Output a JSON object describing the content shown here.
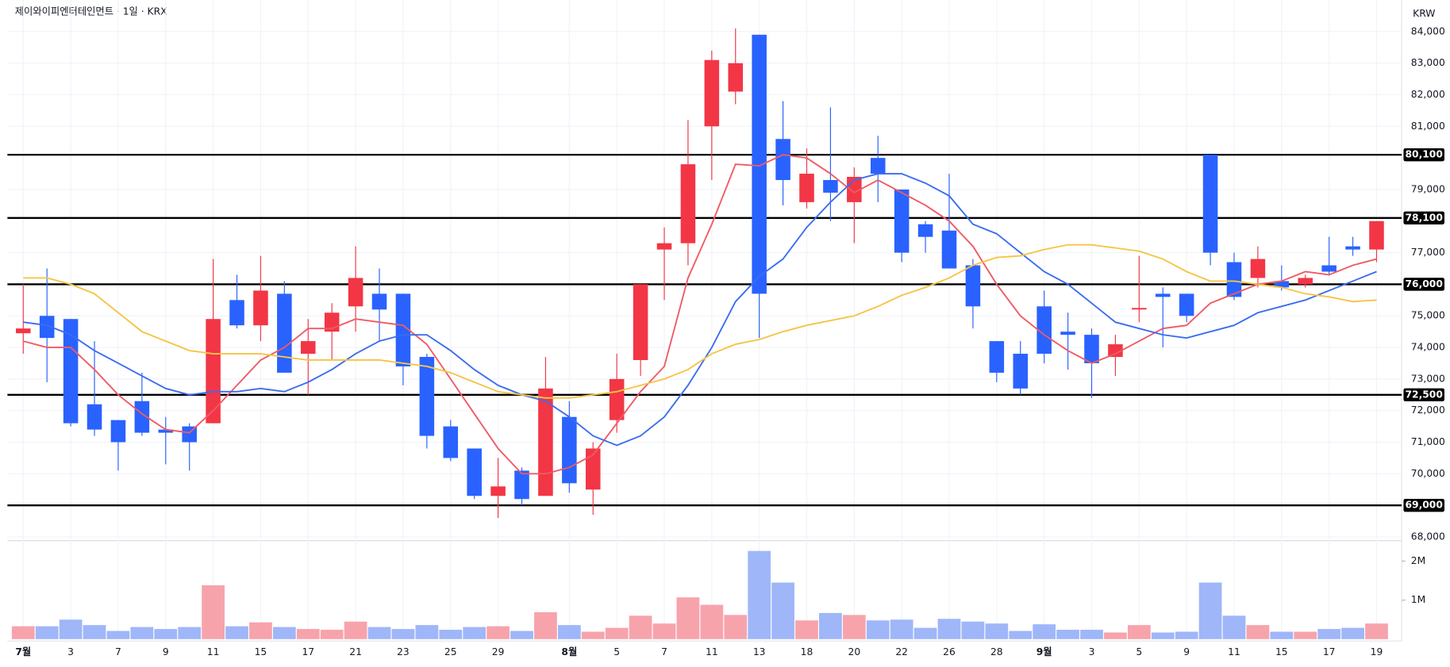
{
  "chart_data": {
    "type": "candlestick",
    "title": "제이와이피엔터테인먼트 · 1일 · KRX",
    "currency": "KRW",
    "categories": [
      "7월",
      null,
      "3",
      null,
      "7",
      null,
      "9",
      null,
      "11",
      null,
      "15",
      null,
      "17",
      null,
      "21",
      null,
      "23",
      null,
      "25",
      null,
      "29",
      null,
      null,
      "8월",
      null,
      "5",
      null,
      "7",
      null,
      "11",
      null,
      "13",
      null,
      "18",
      null,
      "20",
      null,
      "22",
      null,
      "26",
      null,
      "28",
      null,
      "9월",
      null,
      "3",
      null,
      "5",
      null,
      "9",
      null,
      "11",
      null,
      "15",
      null,
      "17",
      null,
      "19"
    ],
    "open": [
      74450,
      75000,
      74900,
      72200,
      71700,
      72300,
      71400,
      71500,
      71600,
      75500,
      74700,
      75700,
      73800,
      74500,
      75300,
      75700,
      75700,
      73700,
      71500,
      70800,
      69300,
      70100,
      69300,
      71800,
      69500,
      71700,
      73600,
      77100,
      77300,
      81000,
      82100,
      83900,
      80600,
      78600,
      79300,
      78600,
      80000,
      79000,
      77900,
      77700,
      76600,
      74200,
      73800,
      75300,
      74500,
      74400,
      73700,
      75200,
      75700,
      75700,
      80100,
      76700,
      76200,
      76100,
      76000,
      76600,
      77200,
      77100
    ],
    "high": [
      76000,
      76500,
      74900,
      74200,
      71700,
      73200,
      71800,
      71600,
      76800,
      76300,
      76900,
      76100,
      74900,
      75400,
      77200,
      76500,
      75700,
      73800,
      71700,
      70800,
      70500,
      70200,
      73700,
      72300,
      71000,
      73800,
      76000,
      77800,
      81200,
      83400,
      84100,
      83900,
      81800,
      80300,
      81600,
      79700,
      80700,
      79000,
      78000,
      79500,
      76800,
      74200,
      74200,
      75800,
      75100,
      74600,
      74400,
      76900,
      75900,
      75700,
      80100,
      77000,
      77200,
      76600,
      76300,
      77500,
      77500,
      78000
    ],
    "low": [
      73800,
      72900,
      71500,
      71200,
      70100,
      71200,
      70300,
      70100,
      71600,
      74600,
      74200,
      73200,
      72500,
      73600,
      74500,
      74200,
      72800,
      70800,
      70400,
      69200,
      68600,
      69000,
      69300,
      69400,
      68700,
      71300,
      73100,
      75500,
      76600,
      79300,
      81700,
      74300,
      78500,
      78400,
      78000,
      77300,
      78600,
      76700,
      77000,
      76500,
      74600,
      72900,
      72500,
      73500,
      73300,
      72400,
      73100,
      74800,
      74000,
      74800,
      76600,
      75500,
      75900,
      75800,
      75900,
      76300,
      76900,
      76700
    ],
    "close": [
      74600,
      74300,
      71600,
      71400,
      71000,
      71300,
      71300,
      71000,
      74900,
      74700,
      75800,
      73200,
      74200,
      75100,
      76200,
      75200,
      73400,
      71200,
      70500,
      69300,
      69600,
      69200,
      72700,
      69700,
      70800,
      73000,
      76000,
      77300,
      79800,
      83100,
      83000,
      75700,
      79300,
      79500,
      78900,
      79400,
      79500,
      77000,
      77500,
      76500,
      75300,
      73200,
      72700,
      73800,
      74400,
      73500,
      74100,
      75250,
      75600,
      75000,
      77000,
      75600,
      76800,
      75900,
      76200,
      76400,
      77100,
      78000
    ],
    "volume": [
      330000,
      330000,
      500000,
      360000,
      210000,
      310000,
      260000,
      310000,
      1380000,
      330000,
      430000,
      310000,
      260000,
      240000,
      450000,
      310000,
      260000,
      360000,
      240000,
      310000,
      330000,
      210000,
      690000,
      360000,
      190000,
      290000,
      600000,
      400000,
      1070000,
      880000,
      620000,
      2260000,
      1450000,
      480000,
      670000,
      620000,
      480000,
      500000,
      290000,
      520000,
      450000,
      400000,
      210000,
      380000,
      240000,
      240000,
      170000,
      360000,
      170000,
      190000,
      1450000,
      600000,
      360000,
      190000,
      190000,
      260000,
      290000,
      400000
    ],
    "up_color": "#f23645",
    "down_color": "#2962ff",
    "up_volume_color": "#f7a3ac",
    "down_volume_color": "#9fb6f9",
    "moving_averages": [
      {
        "color": "#ef5a64",
        "values": [
          74200,
          74000,
          74000,
          73300,
          72500,
          71900,
          71400,
          71300,
          72000,
          72800,
          73600,
          74000,
          74600,
          74600,
          74900,
          74800,
          74700,
          74100,
          73000,
          71900,
          70800,
          70000,
          70000,
          70200,
          70600,
          71600,
          72600,
          73400,
          76200,
          77900,
          79800,
          79750,
          80100,
          80000,
          79500,
          78900,
          79300,
          78900,
          78500,
          78000,
          77200,
          76000,
          75000,
          74400,
          73900,
          73500,
          73800,
          74200,
          74600,
          74700,
          75400,
          75700,
          76000,
          76100,
          76400,
          76300,
          76600,
          76800
        ]
      },
      {
        "color": "#3b6cf0",
        "values": [
          74800,
          74700,
          74400,
          73900,
          73500,
          73100,
          72700,
          72500,
          72600,
          72600,
          72700,
          72600,
          72900,
          73300,
          73800,
          74200,
          74400,
          74400,
          73900,
          73300,
          72800,
          72500,
          72300,
          71800,
          71200,
          70900,
          71200,
          71800,
          72800,
          74000,
          75450,
          76250,
          76800,
          77800,
          78600,
          79300,
          79500,
          79500,
          79200,
          78800,
          77900,
          77600,
          77000,
          76400,
          76000,
          75400,
          74800,
          74600,
          74400,
          74300,
          74500,
          74700,
          75100,
          75300,
          75500,
          75800,
          76100,
          76400
        ]
      },
      {
        "color": "#f6c445",
        "values": [
          76200,
          76200,
          76000,
          75700,
          75100,
          74500,
          74200,
          73900,
          73800,
          73800,
          73800,
          73700,
          73600,
          73600,
          73600,
          73600,
          73500,
          73400,
          73200,
          72900,
          72600,
          72500,
          72400,
          72400,
          72500,
          72600,
          72800,
          73000,
          73300,
          73800,
          74100,
          74250,
          74500,
          74700,
          74850,
          75000,
          75300,
          75650,
          75900,
          76200,
          76600,
          76850,
          76900,
          77100,
          77250,
          77250,
          77150,
          77050,
          76800,
          76400,
          76100,
          76100,
          76000,
          75900,
          75700,
          75600,
          75450,
          75500
        ]
      }
    ],
    "levels": [
      {
        "value": 80100,
        "label": "80,100"
      },
      {
        "value": 78100,
        "label": "78,100"
      },
      {
        "value": 76000,
        "label": "76,000"
      },
      {
        "value": 72500,
        "label": "72,500"
      },
      {
        "value": 69000,
        "label": "69,000"
      }
    ],
    "ylim": [
      68000,
      84000
    ],
    "yticks": [
      {
        "value": 84000,
        "label": "84,000"
      },
      {
        "value": 83000,
        "label": "83,000"
      },
      {
        "value": 82000,
        "label": "82,000"
      },
      {
        "value": 81000,
        "label": "81,000"
      },
      {
        "value": 79000,
        "label": "79,000"
      },
      {
        "value": 77000,
        "label": "77,000"
      },
      {
        "value": 75000,
        "label": "75,000"
      },
      {
        "value": 74000,
        "label": "74,000"
      },
      {
        "value": 73000,
        "label": "73,000"
      },
      {
        "value": 72000,
        "label": "72,000"
      },
      {
        "value": 71000,
        "label": "71,000"
      },
      {
        "value": 70000,
        "label": "70,000"
      },
      {
        "value": 68000,
        "label": "68,000"
      }
    ],
    "volume_ylim": [
      0,
      2000000
    ],
    "volume_ticks": [
      {
        "value": 2000000,
        "label": "2M"
      },
      {
        "value": 1000000,
        "label": "1M"
      }
    ]
  }
}
